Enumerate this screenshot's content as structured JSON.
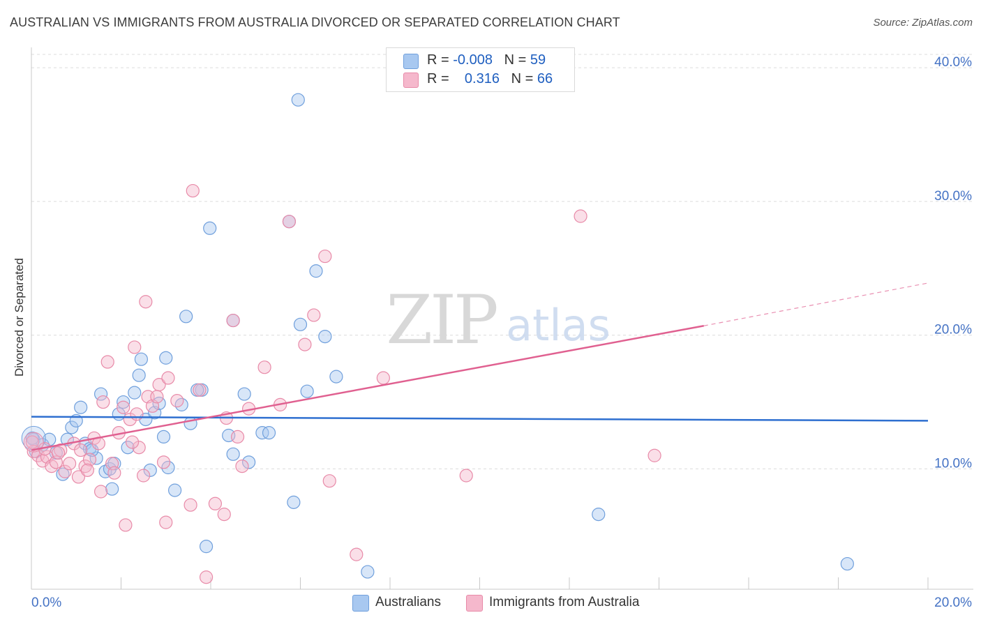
{
  "title": "AUSTRALIAN VS IMMIGRANTS FROM AUSTRALIA DIVORCED OR SEPARATED CORRELATION CHART",
  "source": "Source: ZipAtlas.com",
  "watermark": {
    "zip": "ZIP",
    "atlas": "atlas"
  },
  "legend": {
    "rows": [
      {
        "r_label": "R = ",
        "r_value": "-0.008",
        "n_label": "N = ",
        "n_value": "59",
        "color": "#a8c8f0"
      },
      {
        "r_label": "R = ",
        "r_value": "0.316",
        "n_label": "N = ",
        "n_value": "66",
        "color": "#f5b8cc"
      }
    ]
  },
  "bottom_legend": [
    {
      "label": "Australians",
      "color": "#a8c8f0"
    },
    {
      "label": "Immigrants from Australia",
      "color": "#f5b8cc"
    }
  ],
  "chart_data": {
    "type": "scatter",
    "title": "AUSTRALIAN VS IMMIGRANTS FROM AUSTRALIA DIVORCED OR SEPARATED CORRELATION CHART",
    "xlabel": "",
    "ylabel": "Divorced or Separated",
    "xlim": [
      0,
      20
    ],
    "ylim": [
      1.0,
      41.0
    ],
    "x_tick_labels": [
      "0.0%",
      "20.0%"
    ],
    "y_ticks": [
      10,
      20,
      30,
      40
    ],
    "y_tick_labels": [
      "10.0%",
      "20.0%",
      "30.0%",
      "40.0%"
    ],
    "x_minor_ticks": [
      2,
      4,
      6,
      8,
      10,
      12,
      14,
      16,
      18
    ],
    "colors": {
      "blue_fill": "#a8c8f0",
      "blue_stroke": "#6f9fdc",
      "blue_line": "#2e6fd0",
      "pink_fill": "#f5b8cc",
      "pink_stroke": "#e88aa8",
      "pink_line": "#e06090"
    },
    "series": [
      {
        "name": "Australians",
        "trend": {
          "x": [
            0,
            20
          ],
          "y": [
            13.9,
            13.6
          ],
          "dashed_from": null
        },
        "points": [
          [
            0.05,
            12.2
          ],
          [
            0.1,
            11.3
          ],
          [
            0.25,
            11.8
          ],
          [
            0.4,
            12.2
          ],
          [
            0.55,
            11.2
          ],
          [
            0.7,
            9.6
          ],
          [
            0.8,
            12.2
          ],
          [
            0.9,
            13.1
          ],
          [
            1.0,
            13.6
          ],
          [
            1.1,
            14.6
          ],
          [
            1.2,
            11.9
          ],
          [
            1.3,
            11.5
          ],
          [
            1.45,
            10.8
          ],
          [
            1.55,
            15.6
          ],
          [
            1.65,
            9.8
          ],
          [
            1.75,
            10.0
          ],
          [
            1.8,
            8.5
          ],
          [
            1.85,
            10.4
          ],
          [
            1.95,
            14.1
          ],
          [
            2.05,
            15.0
          ],
          [
            2.15,
            11.6
          ],
          [
            2.3,
            15.7
          ],
          [
            2.4,
            17.0
          ],
          [
            2.45,
            18.2
          ],
          [
            2.55,
            13.7
          ],
          [
            2.65,
            9.9
          ],
          [
            2.75,
            14.2
          ],
          [
            2.85,
            14.9
          ],
          [
            2.95,
            12.4
          ],
          [
            3.0,
            18.3
          ],
          [
            3.05,
            10.1
          ],
          [
            3.2,
            8.4
          ],
          [
            3.35,
            14.8
          ],
          [
            3.45,
            21.4
          ],
          [
            3.55,
            13.4
          ],
          [
            3.8,
            15.9
          ],
          [
            3.9,
            4.2
          ],
          [
            3.98,
            28.0
          ],
          [
            4.4,
            12.5
          ],
          [
            4.5,
            11.1
          ],
          [
            4.5,
            21.1
          ],
          [
            4.75,
            15.6
          ],
          [
            4.85,
            10.5
          ],
          [
            5.15,
            12.7
          ],
          [
            5.3,
            12.7
          ],
          [
            5.75,
            28.5
          ],
          [
            5.85,
            7.5
          ],
          [
            5.95,
            37.6
          ],
          [
            6.0,
            20.8
          ],
          [
            6.15,
            15.8
          ],
          [
            6.35,
            24.8
          ],
          [
            6.55,
            19.9
          ],
          [
            6.8,
            16.9
          ],
          [
            7.5,
            2.3
          ],
          [
            12.65,
            6.6
          ],
          [
            18.2,
            2.9
          ],
          [
            0.02,
            12.3
          ],
          [
            1.35,
            11.4
          ],
          [
            3.7,
            15.9
          ]
        ]
      },
      {
        "name": "Immigrants from Australia",
        "trend": {
          "x": [
            0,
            15
          ],
          "y": [
            11.4,
            20.7
          ],
          "dashed_to": [
            20,
            23.9
          ]
        },
        "points": [
          [
            0.05,
            11.3
          ],
          [
            0.15,
            11.0
          ],
          [
            0.25,
            10.6
          ],
          [
            0.35,
            10.9
          ],
          [
            0.45,
            10.2
          ],
          [
            0.55,
            10.5
          ],
          [
            0.65,
            11.4
          ],
          [
            0.75,
            9.8
          ],
          [
            0.85,
            10.4
          ],
          [
            0.95,
            11.9
          ],
          [
            1.05,
            9.4
          ],
          [
            1.1,
            11.4
          ],
          [
            1.2,
            10.2
          ],
          [
            1.3,
            10.7
          ],
          [
            1.4,
            12.3
          ],
          [
            1.5,
            11.9
          ],
          [
            1.55,
            8.3
          ],
          [
            1.6,
            15.0
          ],
          [
            1.7,
            18.0
          ],
          [
            1.8,
            10.4
          ],
          [
            1.85,
            9.7
          ],
          [
            1.95,
            12.7
          ],
          [
            2.05,
            14.6
          ],
          [
            2.1,
            5.8
          ],
          [
            2.2,
            13.7
          ],
          [
            2.3,
            19.1
          ],
          [
            2.35,
            14.1
          ],
          [
            2.4,
            11.6
          ],
          [
            2.5,
            9.5
          ],
          [
            2.55,
            22.5
          ],
          [
            2.6,
            15.4
          ],
          [
            2.7,
            14.7
          ],
          [
            2.8,
            15.4
          ],
          [
            2.85,
            16.3
          ],
          [
            2.95,
            10.5
          ],
          [
            3.0,
            6.0
          ],
          [
            3.05,
            16.8
          ],
          [
            3.25,
            15.1
          ],
          [
            3.55,
            7.3
          ],
          [
            3.6,
            30.8
          ],
          [
            3.75,
            15.9
          ],
          [
            3.9,
            1.9
          ],
          [
            4.1,
            7.4
          ],
          [
            4.3,
            6.6
          ],
          [
            4.35,
            13.8
          ],
          [
            4.5,
            21.1
          ],
          [
            4.6,
            12.4
          ],
          [
            4.7,
            10.2
          ],
          [
            4.85,
            14.5
          ],
          [
            5.2,
            17.6
          ],
          [
            5.75,
            28.5
          ],
          [
            5.55,
            14.8
          ],
          [
            6.1,
            19.3
          ],
          [
            6.3,
            21.5
          ],
          [
            6.55,
            25.9
          ],
          [
            6.65,
            9.1
          ],
          [
            7.25,
            3.6
          ],
          [
            7.85,
            16.8
          ],
          [
            9.7,
            9.5
          ],
          [
            12.25,
            28.9
          ],
          [
            13.9,
            11.0
          ],
          [
            0.02,
            12.0
          ],
          [
            0.3,
            11.5
          ],
          [
            0.6,
            11.2
          ],
          [
            1.25,
            9.9
          ],
          [
            2.25,
            12.0
          ]
        ]
      }
    ]
  }
}
